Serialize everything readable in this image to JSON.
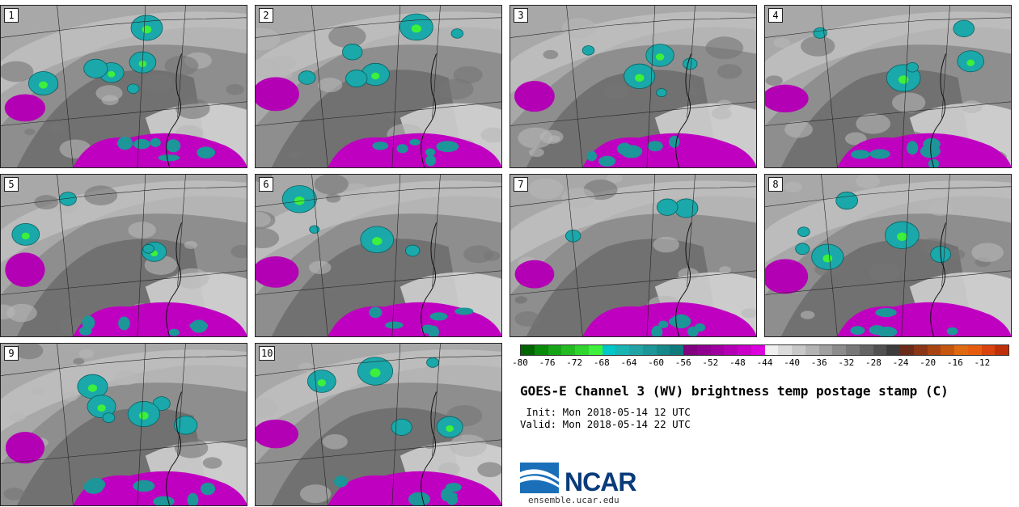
{
  "panels": [
    {
      "label": "1"
    },
    {
      "label": "2"
    },
    {
      "label": "3"
    },
    {
      "label": "4"
    },
    {
      "label": "5"
    },
    {
      "label": "6"
    },
    {
      "label": "7"
    },
    {
      "label": "8"
    },
    {
      "label": "9"
    },
    {
      "label": "10"
    }
  ],
  "colorbar": {
    "colors": [
      "#006400",
      "#0a8a0a",
      "#17a317",
      "#22bb22",
      "#2fd42f",
      "#3cf03c",
      "#00c8c8",
      "#1ab4b4",
      "#22a4a6",
      "#1c9698",
      "#168889",
      "#0f7a7b",
      "#800080",
      "#8f0090",
      "#a000a0",
      "#b400b4",
      "#c800c8",
      "#dc00dc",
      "#f0f0f0",
      "#dcdcdc",
      "#c8c8c8",
      "#b4b4b4",
      "#a0a0a0",
      "#8c8c8c",
      "#787878",
      "#646464",
      "#505050",
      "#3c3c3c",
      "#6b2b1a",
      "#8a3515",
      "#a84412",
      "#c65510",
      "#e06a10",
      "#e65c0e",
      "#d8440b",
      "#c03008"
    ],
    "ticks": [
      "-80",
      "-76",
      "-72",
      "-68",
      "-64",
      "-60",
      "-56",
      "-52",
      "-48",
      "-44",
      "-40",
      "-36",
      "-32",
      "-28",
      "-24",
      "-20",
      "-16",
      "-12"
    ]
  },
  "title": "GOES-E Channel 3 (WV) brightness temp postage stamp (C)",
  "init_line": " Init: Mon 2018-05-14 12 UTC",
  "valid_line": "Valid: Mon 2018-05-14 22 UTC",
  "logo": {
    "name": "NCAR",
    "url": "ensemble.ucar.edu"
  }
}
